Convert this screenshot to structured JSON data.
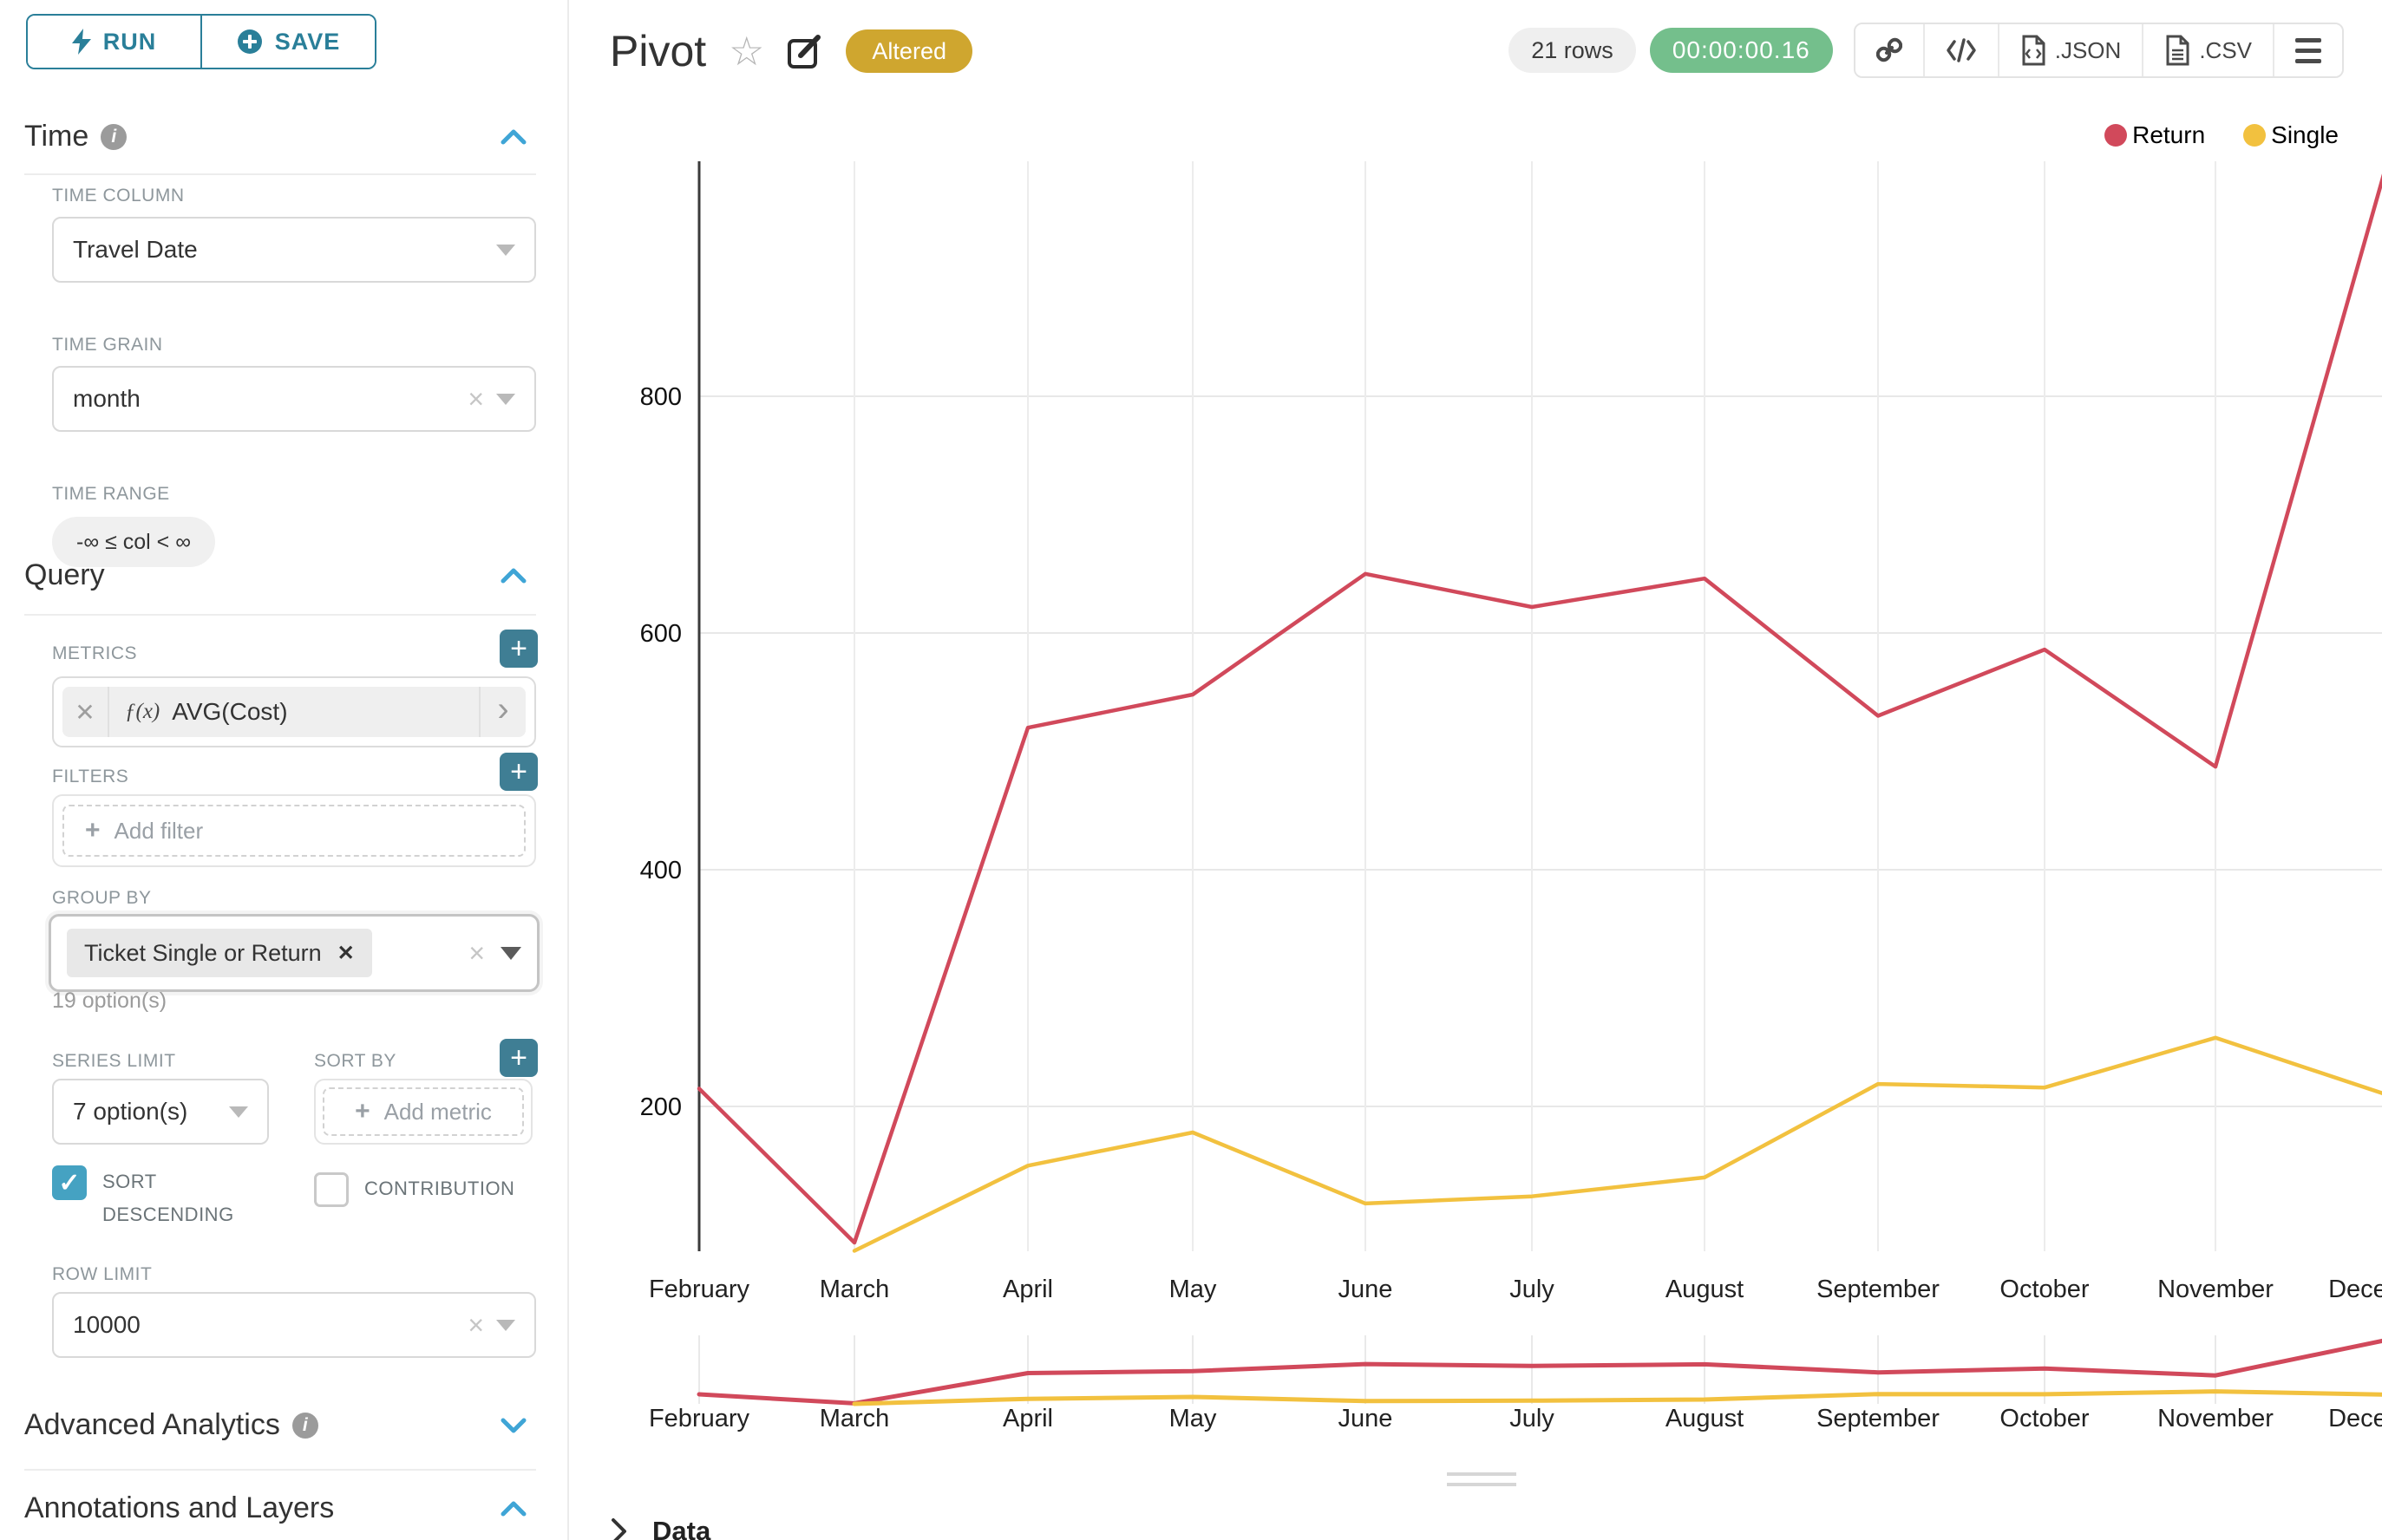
{
  "colors": {
    "accent_teal": "#2a7f99",
    "plus_button": "#3f7e94",
    "checkbox_checked": "#45a2c2",
    "chevron_blue": "#3fa5d6",
    "altered_badge": "#cfa62f",
    "timer_green": "#74bf8c",
    "return_red": "#d1495b",
    "single_yellow": "#f2c13f"
  },
  "left_panel": {
    "run_label": "RUN",
    "save_label": "SAVE",
    "time_section": {
      "title": "Time",
      "time_column_label": "TIME COLUMN",
      "time_column_value": "Travel Date",
      "time_grain_label": "TIME GRAIN",
      "time_grain_value": "month",
      "time_range_label": "TIME RANGE",
      "time_range_value": "-∞ ≤ col < ∞"
    },
    "query_section": {
      "title": "Query",
      "metrics_label": "METRICS",
      "metric_fx": "ƒ(x)",
      "metric_value": "AVG(Cost)",
      "filters_label": "FILTERS",
      "add_filter_placeholder": "Add filter",
      "group_by_label": "GROUP BY",
      "group_by_token": "Ticket Single or Return",
      "group_by_helper": "19 option(s)",
      "series_limit_label": "SERIES LIMIT",
      "series_limit_value": "7 option(s)",
      "sort_by_label": "SORT BY",
      "add_metric_placeholder": "Add metric",
      "sort_descending_label": "SORT DESCENDING",
      "contribution_label": "CONTRIBUTION",
      "row_limit_label": "ROW LIMIT",
      "row_limit_value": "10000"
    },
    "advanced_section": {
      "title": "Advanced Analytics"
    },
    "annotations_section": {
      "title": "Annotations and Layers"
    }
  },
  "header": {
    "title": "Pivot",
    "badge": "Altered",
    "rows_pill": "21 rows",
    "timer": "00:00:00.16",
    "export_json_label": ".JSON",
    "export_csv_label": ".CSV"
  },
  "chart_data": {
    "type": "line",
    "title": "",
    "xlabel": "",
    "ylabel": "",
    "categories": [
      "February",
      "March",
      "April",
      "May",
      "June",
      "July",
      "August",
      "September",
      "October",
      "November",
      "December"
    ],
    "series": [
      {
        "name": "Return",
        "color": "#d1495b",
        "values": [
          215,
          85,
          520,
          548,
          650,
          622,
          646,
          530,
          586,
          487,
          995
        ]
      },
      {
        "name": "Single",
        "color": "#f2c13f",
        "values": [
          null,
          78,
          150,
          178,
          118,
          124,
          140,
          219,
          216,
          258,
          210
        ]
      }
    ],
    "yticks": [
      200,
      400,
      600,
      800
    ],
    "ylim": [
      78,
      1000
    ],
    "grid": true,
    "legend_position": "top-right",
    "metric": "AVG(Cost)",
    "has_context_minimap": true
  },
  "data_panel": {
    "label": "Data"
  }
}
